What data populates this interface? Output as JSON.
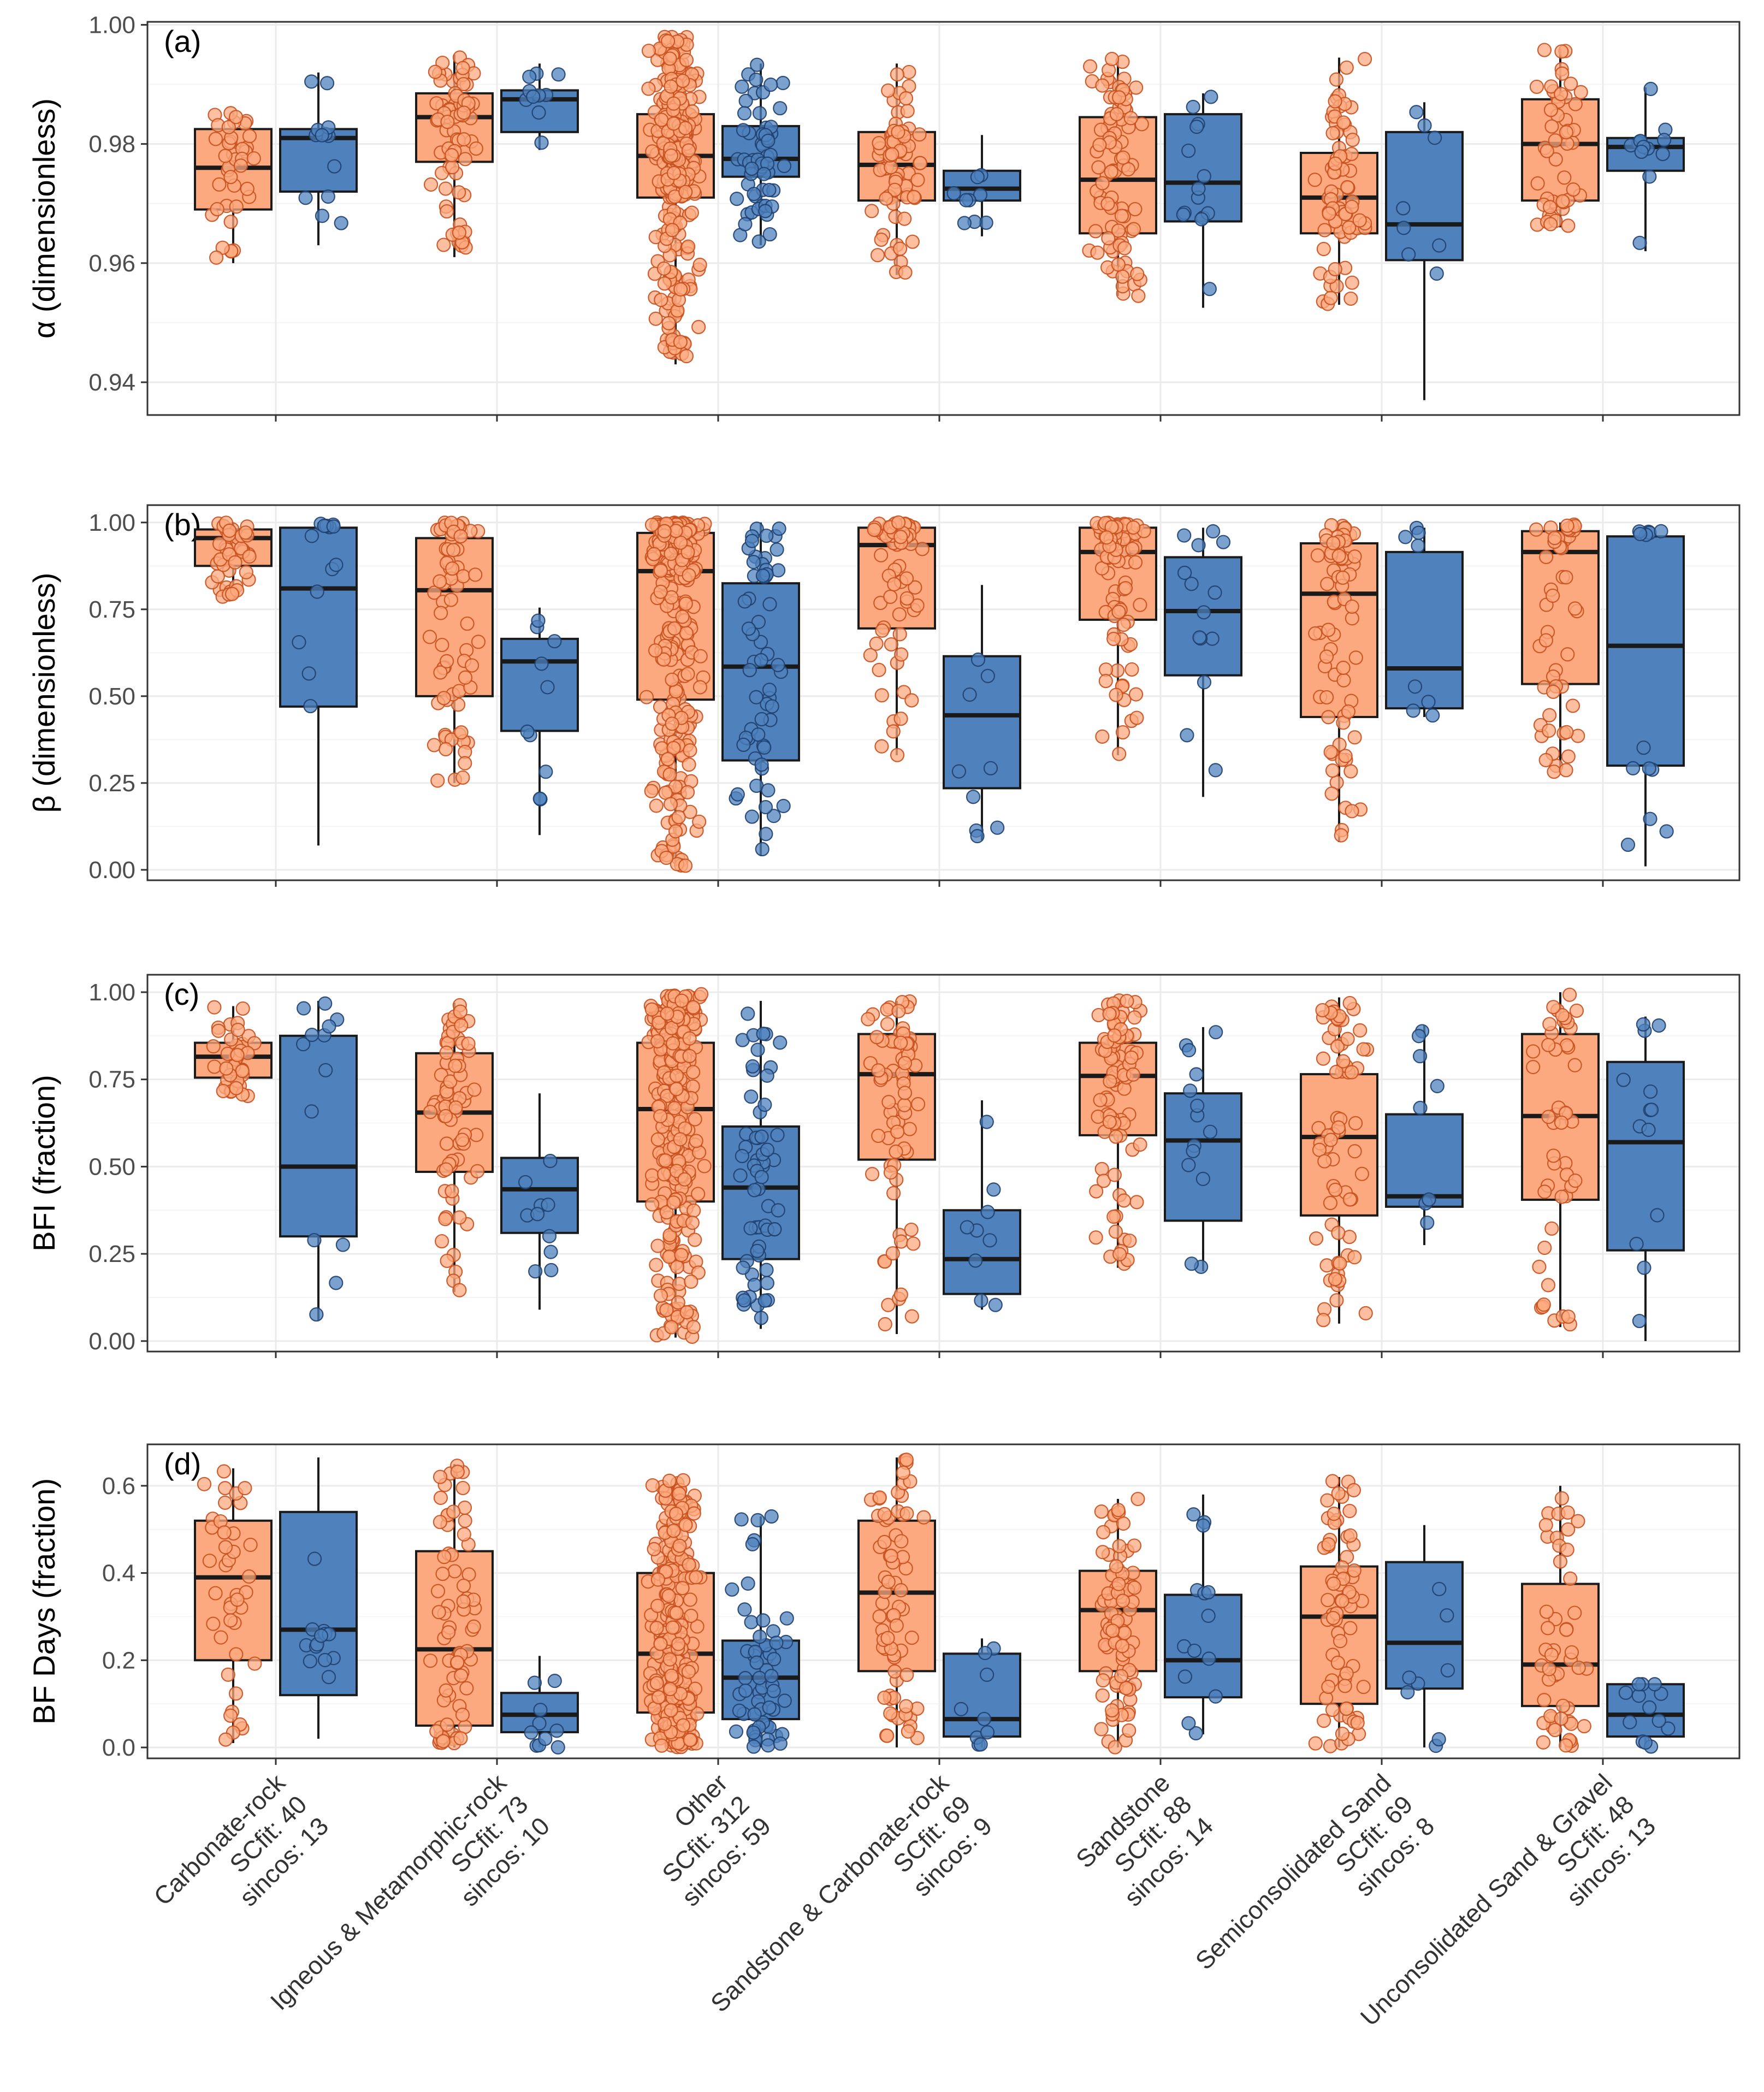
{
  "colors": {
    "scfit": "#fca97f",
    "sincos": "#4f81bd",
    "box_edge": "#1a1a1a",
    "grid": "#ebebeb"
  },
  "chart_data": [
    {
      "type": "box",
      "tag": "(a)",
      "ylabel": "α (dimensionless)",
      "ylim": [
        0.9345,
        1.0005
      ],
      "yticks": [
        0.94,
        0.96,
        0.98,
        1.0
      ],
      "ytick_labels": [
        "0.94",
        "0.96",
        "0.98",
        "1.00"
      ],
      "categories": [
        "Carbonate-rock",
        "Igneous & Metamorphic-rock",
        "Other",
        "Sandstone & Carbonate-rock",
        "Sandstone",
        "Semiconsolidated Sand",
        "Unconsolidated Sand & Gravel"
      ],
      "series": [
        {
          "name": "SCfit",
          "boxes": [
            {
              "min": 0.96,
              "q1": 0.969,
              "median": 0.976,
              "q3": 0.9825,
              "max": 0.9855
            },
            {
              "min": 0.961,
              "q1": 0.977,
              "median": 0.9845,
              "q3": 0.9885,
              "max": 0.995
            },
            {
              "min": 0.943,
              "q1": 0.971,
              "median": 0.978,
              "q3": 0.985,
              "max": 0.998
            },
            {
              "min": 0.958,
              "q1": 0.9705,
              "median": 0.9765,
              "q3": 0.982,
              "max": 0.9935
            },
            {
              "min": 0.9545,
              "q1": 0.965,
              "median": 0.974,
              "q3": 0.9845,
              "max": 0.9945
            },
            {
              "min": 0.953,
              "q1": 0.965,
              "median": 0.971,
              "q3": 0.9785,
              "max": 0.9945
            },
            {
              "min": 0.966,
              "q1": 0.9705,
              "median": 0.98,
              "q3": 0.9875,
              "max": 0.996
            }
          ]
        },
        {
          "name": "sincos",
          "boxes": [
            {
              "min": 0.963,
              "q1": 0.972,
              "median": 0.981,
              "q3": 0.9825,
              "max": 0.992
            },
            {
              "min": 0.979,
              "q1": 0.982,
              "median": 0.9875,
              "q3": 0.989,
              "max": 0.9935
            },
            {
              "min": 0.963,
              "q1": 0.9745,
              "median": 0.9775,
              "q3": 0.983,
              "max": 0.9935
            },
            {
              "min": 0.9645,
              "q1": 0.9705,
              "median": 0.9725,
              "q3": 0.9755,
              "max": 0.9815
            },
            {
              "min": 0.9525,
              "q1": 0.967,
              "median": 0.9735,
              "q3": 0.985,
              "max": 0.9885
            },
            {
              "min": 0.937,
              "q1": 0.9605,
              "median": 0.9665,
              "q3": 0.982,
              "max": 0.987
            },
            {
              "min": 0.962,
              "q1": 0.9755,
              "median": 0.9795,
              "q3": 0.981,
              "max": 0.9895
            }
          ]
        }
      ]
    },
    {
      "type": "box",
      "tag": "(b)",
      "ylabel": "β (dimensionless)",
      "ylim": [
        -0.03,
        1.05
      ],
      "yticks": [
        0.0,
        0.25,
        0.5,
        0.75,
        1.0
      ],
      "ytick_labels": [
        "0.00",
        "0.25",
        "0.50",
        "0.75",
        "1.00"
      ],
      "categories": [
        "Carbonate-rock",
        "Igneous & Metamorphic-rock",
        "Other",
        "Sandstone & Carbonate-rock",
        "Sandstone",
        "Semiconsolidated Sand",
        "Unconsolidated Sand & Gravel"
      ],
      "series": [
        {
          "name": "SCfit",
          "boxes": [
            {
              "min": 0.78,
              "q1": 0.875,
              "median": 0.955,
              "q3": 0.98,
              "max": 1.0
            },
            {
              "min": 0.25,
              "q1": 0.5,
              "median": 0.805,
              "q3": 0.955,
              "max": 1.0
            },
            {
              "min": 0.01,
              "q1": 0.49,
              "median": 0.86,
              "q3": 0.97,
              "max": 1.0
            },
            {
              "min": 0.33,
              "q1": 0.695,
              "median": 0.935,
              "q3": 0.985,
              "max": 1.0
            },
            {
              "min": 0.33,
              "q1": 0.72,
              "median": 0.915,
              "q3": 0.985,
              "max": 1.0
            },
            {
              "min": 0.08,
              "q1": 0.44,
              "median": 0.795,
              "q3": 0.94,
              "max": 1.0
            },
            {
              "min": 0.28,
              "q1": 0.535,
              "median": 0.915,
              "q3": 0.975,
              "max": 1.0
            }
          ]
        },
        {
          "name": "sincos",
          "boxes": [
            {
              "min": 0.07,
              "q1": 0.47,
              "median": 0.81,
              "q3": 0.985,
              "max": 1.0
            },
            {
              "min": 0.1,
              "q1": 0.4,
              "median": 0.6,
              "q3": 0.665,
              "max": 0.755
            },
            {
              "min": 0.04,
              "q1": 0.315,
              "median": 0.585,
              "q3": 0.825,
              "max": 1.0
            },
            {
              "min": 0.085,
              "q1": 0.235,
              "median": 0.445,
              "q3": 0.615,
              "max": 0.82
            },
            {
              "min": 0.21,
              "q1": 0.56,
              "median": 0.745,
              "q3": 0.9,
              "max": 0.985
            },
            {
              "min": 0.44,
              "q1": 0.465,
              "median": 0.58,
              "q3": 0.915,
              "max": 0.985
            },
            {
              "min": 0.01,
              "q1": 0.3,
              "median": 0.645,
              "q3": 0.96,
              "max": 0.99
            }
          ]
        }
      ]
    },
    {
      "type": "box",
      "tag": "(c)",
      "ylabel": "BFI (fraction)",
      "ylim": [
        -0.03,
        1.05
      ],
      "yticks": [
        0.0,
        0.25,
        0.5,
        0.75,
        1.0
      ],
      "ytick_labels": [
        "0.00",
        "0.25",
        "0.50",
        "0.75",
        "1.00"
      ],
      "categories": [
        "Carbonate-rock",
        "Igneous & Metamorphic-rock",
        "Other",
        "Sandstone & Carbonate-rock",
        "Sandstone",
        "Semiconsolidated Sand",
        "Unconsolidated Sand & Gravel"
      ],
      "series": [
        {
          "name": "SCfit",
          "boxes": [
            {
              "min": 0.7,
              "q1": 0.755,
              "median": 0.815,
              "q3": 0.855,
              "max": 0.96
            },
            {
              "min": 0.14,
              "q1": 0.485,
              "median": 0.655,
              "q3": 0.825,
              "max": 0.97
            },
            {
              "min": 0.01,
              "q1": 0.4,
              "median": 0.665,
              "q3": 0.855,
              "max": 1.0
            },
            {
              "min": 0.02,
              "q1": 0.52,
              "median": 0.765,
              "q3": 0.88,
              "max": 0.975
            },
            {
              "min": 0.21,
              "q1": 0.59,
              "median": 0.76,
              "q3": 0.855,
              "max": 0.98
            },
            {
              "min": 0.05,
              "q1": 0.36,
              "median": 0.585,
              "q3": 0.765,
              "max": 0.985
            },
            {
              "min": 0.04,
              "q1": 0.405,
              "median": 0.645,
              "q3": 0.88,
              "max": 1.0
            }
          ]
        },
        {
          "name": "sincos",
          "boxes": [
            {
              "min": 0.06,
              "q1": 0.3,
              "median": 0.5,
              "q3": 0.875,
              "max": 0.975
            },
            {
              "min": 0.09,
              "q1": 0.31,
              "median": 0.435,
              "q3": 0.525,
              "max": 0.71
            },
            {
              "min": 0.035,
              "q1": 0.235,
              "median": 0.44,
              "q3": 0.615,
              "max": 0.975
            },
            {
              "min": 0.09,
              "q1": 0.135,
              "median": 0.235,
              "q3": 0.375,
              "max": 0.69
            },
            {
              "min": 0.2,
              "q1": 0.345,
              "median": 0.575,
              "q3": 0.71,
              "max": 0.9
            },
            {
              "min": 0.275,
              "q1": 0.385,
              "median": 0.415,
              "q3": 0.65,
              "max": 0.905
            },
            {
              "min": 0.0,
              "q1": 0.26,
              "median": 0.57,
              "q3": 0.8,
              "max": 0.93
            }
          ]
        }
      ]
    },
    {
      "type": "box",
      "tag": "(d)",
      "ylabel": "BF Days (fraction)",
      "ylim": [
        -0.025,
        0.695
      ],
      "yticks": [
        0.0,
        0.2,
        0.4,
        0.6
      ],
      "ytick_labels": [
        "0.0",
        "0.2",
        "0.4",
        "0.6"
      ],
      "categories": [
        "Carbonate-rock",
        "Igneous & Metamorphic-rock",
        "Other",
        "Sandstone & Carbonate-rock",
        "Sandstone",
        "Semiconsolidated Sand",
        "Unconsolidated Sand & Gravel"
      ],
      "series": [
        {
          "name": "SCfit",
          "boxes": [
            {
              "min": 0.01,
              "q1": 0.2,
              "median": 0.39,
              "q3": 0.52,
              "max": 0.64
            },
            {
              "min": 0.0,
              "q1": 0.05,
              "median": 0.225,
              "q3": 0.45,
              "max": 0.65
            },
            {
              "min": 0.0,
              "q1": 0.08,
              "median": 0.215,
              "q3": 0.4,
              "max": 0.615
            },
            {
              "min": 0.0,
              "q1": 0.175,
              "median": 0.355,
              "q3": 0.52,
              "max": 0.665
            },
            {
              "min": 0.0,
              "q1": 0.175,
              "median": 0.315,
              "q3": 0.405,
              "max": 0.57
            },
            {
              "min": 0.0,
              "q1": 0.1,
              "median": 0.3,
              "q3": 0.415,
              "max": 0.62
            },
            {
              "min": 0.0,
              "q1": 0.095,
              "median": 0.19,
              "q3": 0.375,
              "max": 0.6
            }
          ]
        },
        {
          "name": "sincos",
          "boxes": [
            {
              "min": 0.02,
              "q1": 0.12,
              "median": 0.27,
              "q3": 0.54,
              "max": 0.665
            },
            {
              "min": 0.0,
              "q1": 0.035,
              "median": 0.075,
              "q3": 0.125,
              "max": 0.21
            },
            {
              "min": 0.0,
              "q1": 0.065,
              "median": 0.16,
              "q3": 0.245,
              "max": 0.53
            },
            {
              "min": 0.0,
              "q1": 0.025,
              "median": 0.065,
              "q3": 0.215,
              "max": 0.25
            },
            {
              "min": 0.03,
              "q1": 0.115,
              "median": 0.2,
              "q3": 0.35,
              "max": 0.58
            },
            {
              "min": 0.0,
              "q1": 0.135,
              "median": 0.24,
              "q3": 0.425,
              "max": 0.51
            },
            {
              "min": 0.0,
              "q1": 0.025,
              "median": 0.075,
              "q3": 0.145,
              "max": 0.145
            }
          ]
        }
      ]
    }
  ],
  "x_labels": [
    {
      "name": "Carbonate-rock",
      "scfit": "SCfit: 40",
      "sincos": "sincos: 13",
      "n_scfit": 40,
      "n_sincos": 13
    },
    {
      "name": "Igneous & Metamorphic-rock",
      "scfit": "SCfit: 73",
      "sincos": "sincos: 10",
      "n_scfit": 73,
      "n_sincos": 10
    },
    {
      "name": "Other",
      "scfit": "SCfit: 312",
      "sincos": "sincos: 59",
      "n_scfit": 312,
      "n_sincos": 59
    },
    {
      "name": "Sandstone & Carbonate-rock",
      "scfit": "SCfit: 69",
      "sincos": "sincos: 9",
      "n_scfit": 69,
      "n_sincos": 9
    },
    {
      "name": "Sandstone",
      "scfit": "SCfit: 88",
      "sincos": "sincos: 14",
      "n_scfit": 88,
      "n_sincos": 14
    },
    {
      "name": "Semiconsolidated Sand",
      "scfit": "SCfit: 69",
      "sincos": "sincos: 8",
      "n_scfit": 69,
      "n_sincos": 8
    },
    {
      "name": "Unconsolidated Sand & Gravel",
      "scfit": "SCfit: 48",
      "sincos": "sincos: 13",
      "n_scfit": 48,
      "n_sincos": 13
    }
  ]
}
